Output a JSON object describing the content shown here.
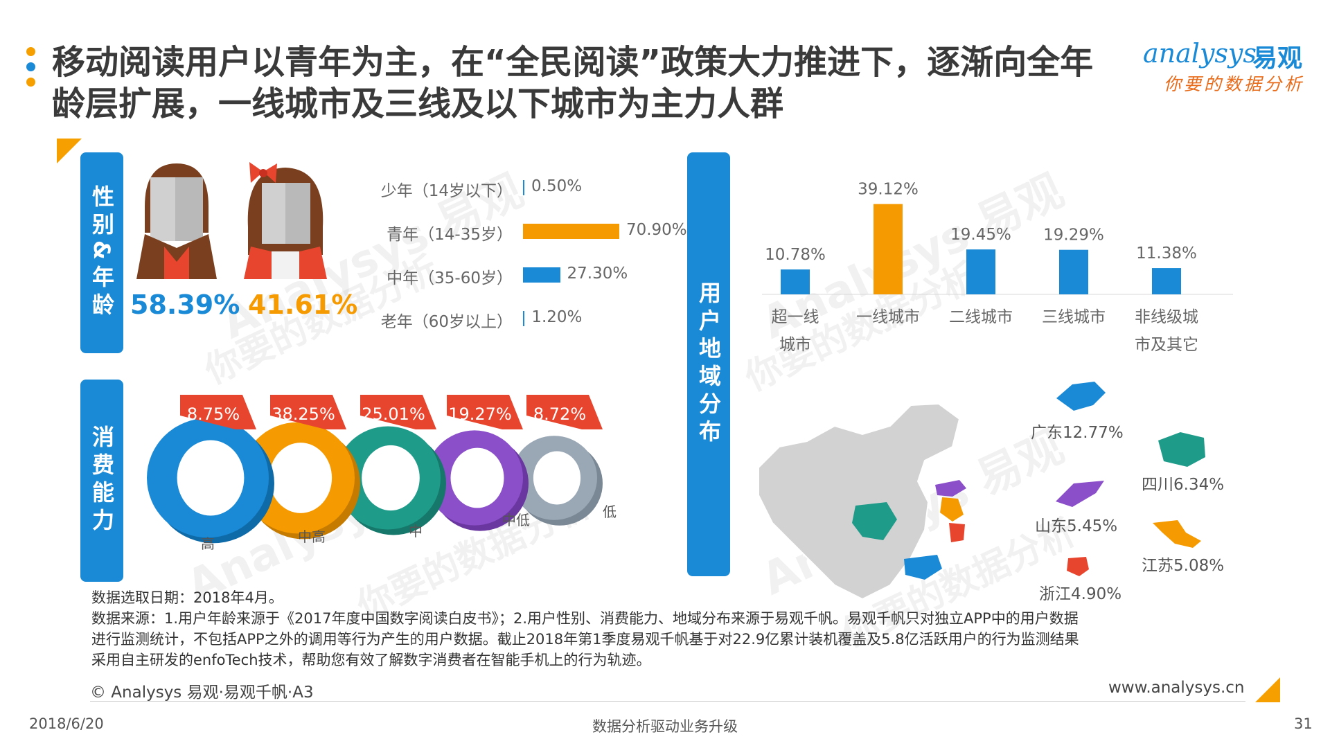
{
  "title": "移动阅读用户以青年为主，在“全民阅读”政策大力推进下，逐渐向全年龄层扩展，一线城市及三线及以下城市为主力人群",
  "logo": {
    "brand": "analysys",
    "brand_cn": "易观",
    "tagline": "你要的数据分析"
  },
  "watermark": {
    "brand": "Analysys 易观",
    "tagline": "你要的数据分析"
  },
  "colors": {
    "blue": "#1a8ad6",
    "orange": "#f59a00",
    "red": "#e8452e",
    "teal": "#1f9b8a",
    "purple": "#8a4fc9",
    "grey": "#9aa7b5"
  },
  "sections": {
    "gender_age": "性别&年龄",
    "consumption": "消费能力",
    "region": "用户地域分布"
  },
  "gender": {
    "male_pct": "58.39%",
    "female_pct": "41.61%"
  },
  "consumption_labels": {
    "pct": [
      "8.75%",
      "38.25%",
      "25.01%",
      "19.27%",
      "8.72%"
    ]
  },
  "provinces": [
    {
      "label": "广东12.77%"
    },
    {
      "label": "四川6.34%"
    },
    {
      "label": "山东5.45%"
    },
    {
      "label": "江苏5.08%"
    },
    {
      "label": "浙江4.90%"
    }
  ],
  "chart_data": [
    {
      "type": "bar",
      "orientation": "horizontal",
      "categories": [
        "少年（14岁以下）",
        "青年（14-35岁）",
        "中年（35-60岁）",
        "老年（60岁以上）"
      ],
      "values": [
        0.5,
        70.9,
        27.3,
        1.2
      ],
      "labels": [
        "0.50%",
        "70.90%",
        "27.30%",
        "1.20%"
      ],
      "colors": [
        "#1a8ad6",
        "#f59a00",
        "#1a8ad6",
        "#1a8ad6"
      ],
      "xlim": [
        0,
        100
      ]
    },
    {
      "type": "bar",
      "categories": [
        "超一线城市",
        "一线城市",
        "二线城市",
        "三线城市",
        "非线级城市及其它"
      ],
      "category_lines": [
        [
          "超一线",
          "城市"
        ],
        [
          "一线城市"
        ],
        [
          "二线城市"
        ],
        [
          "三线城市"
        ],
        [
          "非线级城",
          "市及其它"
        ]
      ],
      "values": [
        10.78,
        39.12,
        19.45,
        19.29,
        11.38
      ],
      "labels": [
        "10.78%",
        "39.12%",
        "19.45%",
        "19.29%",
        "11.38%"
      ],
      "colors": [
        "#1a8ad6",
        "#f59a00",
        "#1a8ad6",
        "#1a8ad6",
        "#1a8ad6"
      ],
      "ylim": [
        0,
        45
      ]
    },
    {
      "type": "pie",
      "style": "3d-rings",
      "categories": [
        "高",
        "中高",
        "中",
        "中低",
        "低"
      ],
      "values": [
        8.75,
        38.25,
        25.01,
        19.27,
        8.72
      ],
      "labels": [
        "8.75%",
        "38.25%",
        "25.01%",
        "19.27%",
        "8.72%"
      ],
      "colors": [
        "#1a8ad6",
        "#f59a00",
        "#1f9b8a",
        "#8a4fc9",
        "#9aa7b5"
      ]
    }
  ],
  "footnote": {
    "line1": "数据选取日期：2018年4月。",
    "line2": "数据来源：1.用户年龄来源于《2017年度中国数字阅读白皮书》；2.用户性别、消费能力、地域分布来源于易观千帆。易观千帆只对独立APP中的用户数据",
    "line3": "进行监测统计，不包括APP之外的调用等行为产生的用户数据。截止2018年第1季度易观千帆基于对22.9亿累计装机覆盖及5.8亿活跃用户的行为监测结果",
    "line4": "采用自主研发的enfoTech技术，帮助您有效了解数字消费者在智能手机上的行为轨迹。"
  },
  "copyright": "© Analysys 易观·易观千帆·A3",
  "website": "www.analysys.cn",
  "footer": {
    "date": "2018/6/20",
    "center": "数据分析驱动业务升级",
    "page": "31"
  }
}
